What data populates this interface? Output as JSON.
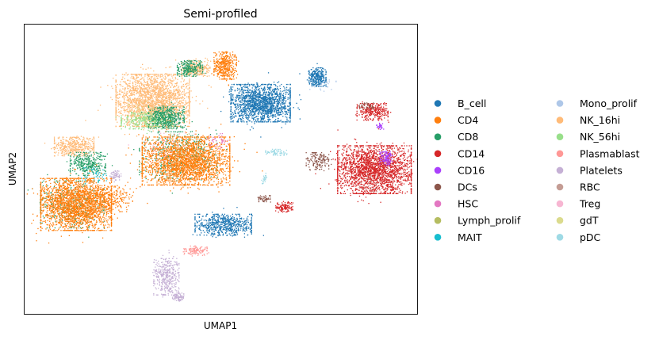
{
  "chart_data": {
    "type": "scatter",
    "title": "Semi-profiled",
    "xlabel": "UMAP1",
    "ylabel": "UMAP2",
    "xlim": [
      0,
      100
    ],
    "ylim": [
      0,
      100
    ],
    "grid": false,
    "legend_placement": "right-outside",
    "legend_columns": 2,
    "series": [
      {
        "name": "B_cell",
        "color": "#1f77b4"
      },
      {
        "name": "CD4",
        "color": "#ff7f0e"
      },
      {
        "name": "CD8",
        "color": "#279e68"
      },
      {
        "name": "CD14",
        "color": "#d62728"
      },
      {
        "name": "CD16",
        "color": "#aa40fc"
      },
      {
        "name": "DCs",
        "color": "#8c564b"
      },
      {
        "name": "HSC",
        "color": "#e377c2"
      },
      {
        "name": "Lymph_prolif",
        "color": "#b5bd61"
      },
      {
        "name": "MAIT",
        "color": "#17becf"
      },
      {
        "name": "Mono_prolif",
        "color": "#aec7e8"
      },
      {
        "name": "NK_16hi",
        "color": "#ffbb78"
      },
      {
        "name": "NK_56hi",
        "color": "#98df8a"
      },
      {
        "name": "Plasmablast",
        "color": "#ff9896"
      },
      {
        "name": "Platelets",
        "color": "#c5b0d5"
      },
      {
        "name": "RBC",
        "color": "#c49c94"
      },
      {
        "name": "Treg",
        "color": "#f7b6d2"
      },
      {
        "name": "gdT",
        "color": "#dbdb8d"
      },
      {
        "name": "pDC",
        "color": "#9edae5"
      }
    ],
    "clusters": [
      {
        "series": "B_cell",
        "x": 60,
        "y": 73,
        "sx": 4.2,
        "sy": 3.6,
        "n": 1700
      },
      {
        "series": "B_cell",
        "x": 74.5,
        "y": 82,
        "sx": 1.2,
        "sy": 1.8,
        "n": 300
      },
      {
        "series": "B_cell",
        "x": 50.5,
        "y": 31,
        "sx": 4.0,
        "sy": 2.0,
        "n": 650
      },
      {
        "series": "CD14",
        "x": 89,
        "y": 50,
        "sx": 5.2,
        "sy": 4.6,
        "n": 2300
      },
      {
        "series": "CD14",
        "x": 88.5,
        "y": 70,
        "sx": 2.2,
        "sy": 1.6,
        "n": 300
      },
      {
        "series": "CD14",
        "x": 66,
        "y": 37,
        "sx": 1.2,
        "sy": 0.9,
        "n": 120
      },
      {
        "series": "CD16",
        "x": 92,
        "y": 54,
        "sx": 0.9,
        "sy": 1.2,
        "n": 120
      },
      {
        "series": "CD16",
        "x": 90.5,
        "y": 65,
        "sx": 0.5,
        "sy": 0.6,
        "n": 30
      },
      {
        "series": "DCs",
        "x": 74.5,
        "y": 53,
        "sx": 1.6,
        "sy": 1.6,
        "n": 150
      },
      {
        "series": "DCs",
        "x": 87,
        "y": 72,
        "sx": 1.0,
        "sy": 0.6,
        "n": 40
      },
      {
        "series": "DCs",
        "x": 61,
        "y": 40,
        "sx": 0.8,
        "sy": 0.6,
        "n": 50
      },
      {
        "series": "NK_16hi",
        "x": 32.5,
        "y": 74,
        "sx": 5.2,
        "sy": 5.0,
        "n": 2300
      },
      {
        "series": "NK_16hi",
        "x": 12.5,
        "y": 58,
        "sx": 2.8,
        "sy": 1.8,
        "n": 450
      },
      {
        "series": "NK_16hi",
        "x": 43.5,
        "y": 85,
        "sx": 2.0,
        "sy": 1.5,
        "n": 300
      },
      {
        "series": "NK_56hi",
        "x": 31,
        "y": 67,
        "sx": 3.6,
        "sy": 1.6,
        "n": 350
      },
      {
        "series": "CD8",
        "x": 36,
        "y": 68,
        "sx": 2.5,
        "sy": 2.0,
        "n": 500
      },
      {
        "series": "CD8",
        "x": 16,
        "y": 52,
        "sx": 2.5,
        "sy": 2.2,
        "n": 350
      },
      {
        "series": "CD8",
        "x": 42,
        "y": 85,
        "sx": 1.8,
        "sy": 1.5,
        "n": 250
      },
      {
        "series": "CD8",
        "x": 39,
        "y": 55,
        "sx": 5.5,
        "sy": 4.5,
        "n": 450
      },
      {
        "series": "CD8",
        "x": 12,
        "y": 38,
        "sx": 4.5,
        "sy": 4.5,
        "n": 350
      },
      {
        "series": "CD4",
        "x": 41,
        "y": 53,
        "sx": 6.2,
        "sy": 4.6,
        "n": 2600
      },
      {
        "series": "CD4",
        "x": 13,
        "y": 38,
        "sx": 5.0,
        "sy": 5.0,
        "n": 2500
      },
      {
        "series": "CD4",
        "x": 51,
        "y": 86,
        "sx": 1.6,
        "sy": 2.6,
        "n": 450
      },
      {
        "series": "CD4",
        "x": 22,
        "y": 40,
        "sx": 3.0,
        "sy": 2.5,
        "n": 250
      },
      {
        "series": "Plasmablast",
        "x": 43.5,
        "y": 22,
        "sx": 1.6,
        "sy": 0.9,
        "n": 120
      },
      {
        "series": "Platelets",
        "x": 36,
        "y": 13,
        "sx": 1.8,
        "sy": 3.5,
        "n": 400
      },
      {
        "series": "Platelets",
        "x": 39,
        "y": 6,
        "sx": 0.8,
        "sy": 0.8,
        "n": 80
      },
      {
        "series": "Platelets",
        "x": 23,
        "y": 48,
        "sx": 0.8,
        "sy": 0.9,
        "n": 60
      },
      {
        "series": "pDC",
        "x": 64,
        "y": 56,
        "sx": 1.5,
        "sy": 0.6,
        "n": 70
      },
      {
        "series": "pDC",
        "x": 61,
        "y": 47,
        "sx": 0.4,
        "sy": 1.0,
        "n": 25
      },
      {
        "series": "MAIT",
        "x": 18,
        "y": 48,
        "sx": 1.5,
        "sy": 1.5,
        "n": 40
      },
      {
        "series": "HSC",
        "x": 49,
        "y": 60,
        "sx": 1.5,
        "sy": 1.5,
        "n": 40
      },
      {
        "series": "Treg",
        "x": 36,
        "y": 58,
        "sx": 4.0,
        "sy": 3.0,
        "n": 60
      },
      {
        "series": "Lymph_prolif",
        "x": 40,
        "y": 58,
        "sx": 3.0,
        "sy": 3.0,
        "n": 40
      },
      {
        "series": "gdT",
        "x": 30,
        "y": 70,
        "sx": 2.0,
        "sy": 2.0,
        "n": 40
      },
      {
        "series": "Mono_prolif",
        "x": 76,
        "y": 80,
        "sx": 2.0,
        "sy": 1.5,
        "n": 30
      },
      {
        "series": "RBC",
        "x": 88,
        "y": 46,
        "sx": 2.0,
        "sy": 2.0,
        "n": 30
      }
    ]
  }
}
